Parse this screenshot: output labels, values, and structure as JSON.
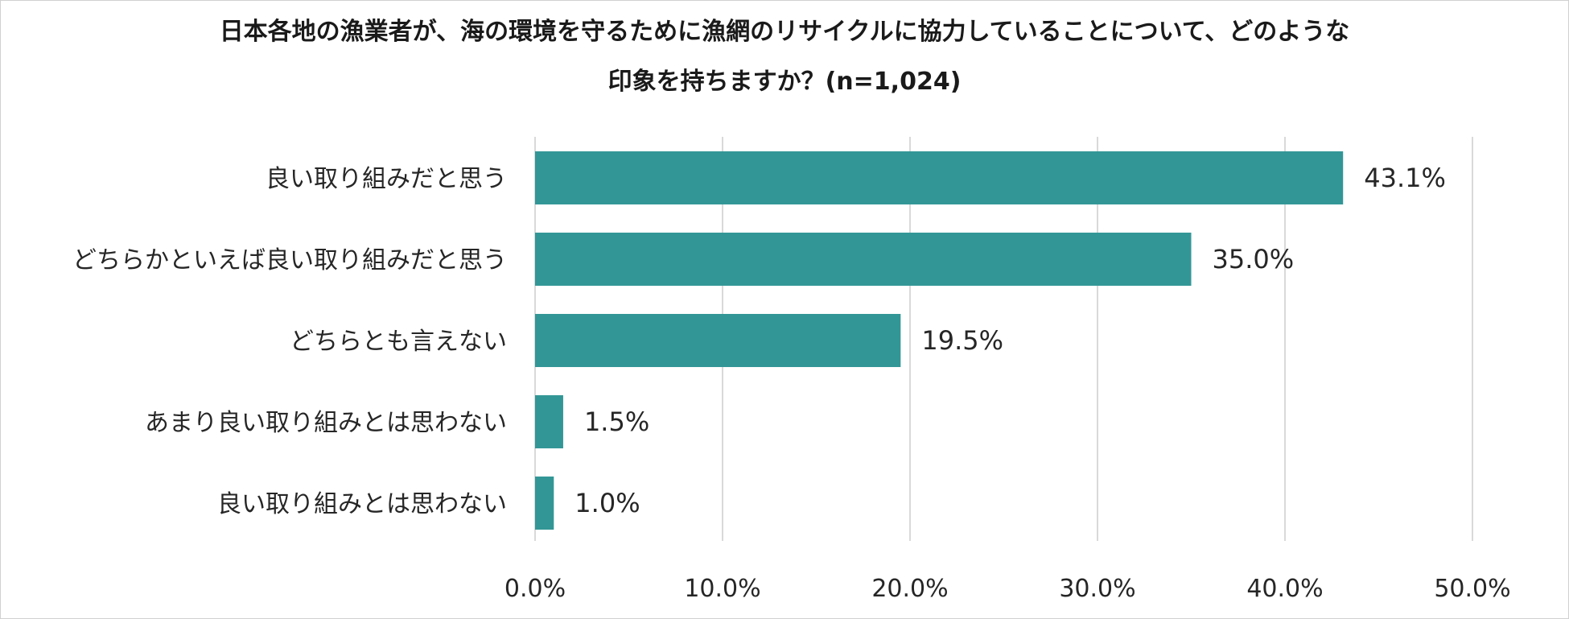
{
  "title_line1": "日本各地の漁業者が、海の環境を守るために漁網のリサイクルに協力していることについて、どのような",
  "title_line2": "印象を持ちますか？(n=1,024)",
  "chart_data": {
    "type": "bar",
    "orientation": "horizontal",
    "categories": [
      "良い取り組みだと思う",
      "どちらかといえば良い取り組みだと思う",
      "どちらとも言えない",
      "あまり良い取り組みとは思わない",
      "良い取り組みとは思わない"
    ],
    "values": [
      43.1,
      35.0,
      19.5,
      1.5,
      1.0
    ],
    "value_labels": [
      "43.1%",
      "35.0%",
      "19.5%",
      "1.5%",
      "1.0%"
    ],
    "xlim": [
      0,
      50
    ],
    "x_ticks": [
      0,
      10,
      20,
      30,
      40,
      50
    ],
    "x_tick_labels": [
      "0.0%",
      "10.0%",
      "20.0%",
      "30.0%",
      "40.0%",
      "50.0%"
    ],
    "grid": true,
    "legend": "none",
    "bar_color": "#339696",
    "grid_color": "#d9d9d9"
  }
}
